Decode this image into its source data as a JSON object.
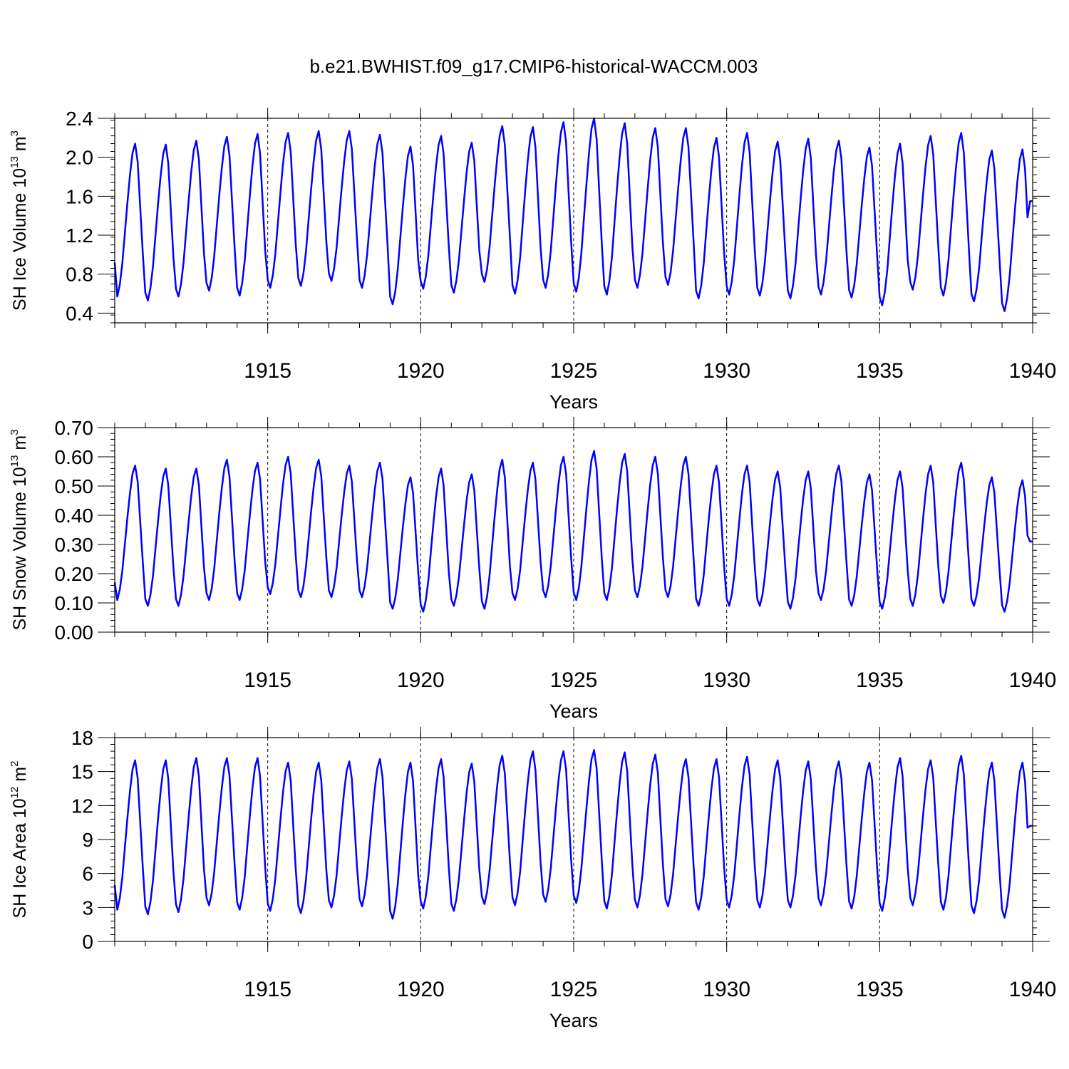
{
  "title": "b.e21.BWHIST.f09_g17.CMIP6-historical-WACCM.003",
  "colors": {
    "line": "#0000ff",
    "axis": "#000000"
  },
  "chart_data": [
    {
      "type": "line",
      "ylabel": {
        "text": "SH Ice Volume 10",
        "exp": "13",
        "unit": " m",
        "unit_exp": "3"
      },
      "xlabel": "Years",
      "xlim": [
        1910.0,
        1940.0
      ],
      "ylim": [
        0.3,
        2.4
      ],
      "yticks": [
        0.4,
        0.8,
        1.2,
        1.6,
        2.0,
        2.4
      ],
      "ytick_labels": [
        "0.4",
        "0.8",
        "1.2",
        "1.6",
        "2.0",
        "2.4"
      ],
      "xticks": [
        1915,
        1920,
        1925,
        1930,
        1935,
        1940
      ],
      "xtick_labels": [
        "1915",
        "1920",
        "1925",
        "1930",
        "1935",
        "1940"
      ],
      "start_value": 0.92,
      "end_value": 1.55,
      "annual_min": [
        0.57,
        0.53,
        0.57,
        0.63,
        0.58,
        0.66,
        0.68,
        0.73,
        0.66,
        0.49,
        0.65,
        0.61,
        0.72,
        0.6,
        0.66,
        0.62,
        0.59,
        0.66,
        0.69,
        0.55,
        0.59,
        0.58,
        0.55,
        0.59,
        0.56,
        0.48,
        0.64,
        0.58,
        0.52,
        0.42
      ],
      "annual_max": [
        2.14,
        2.13,
        2.17,
        2.21,
        2.24,
        2.25,
        2.27,
        2.27,
        2.23,
        2.11,
        2.22,
        2.15,
        2.32,
        2.31,
        2.36,
        2.4,
        2.35,
        2.3,
        2.3,
        2.2,
        2.25,
        2.16,
        2.19,
        2.17,
        2.1,
        2.14,
        2.22,
        2.25,
        2.07,
        2.08
      ],
      "dashed_vlines": [
        1915,
        1920,
        1925,
        1930,
        1935
      ]
    },
    {
      "type": "line",
      "ylabel": {
        "text": "SH Snow Volume 10",
        "exp": "13",
        "unit": " m",
        "unit_exp": "3"
      },
      "xlabel": "Years",
      "xlim": [
        1910.0,
        1940.0
      ],
      "ylim": [
        0.0,
        0.7
      ],
      "yticks": [
        0.0,
        0.1,
        0.2,
        0.3,
        0.4,
        0.5,
        0.6,
        0.7
      ],
      "ytick_labels": [
        "0.00",
        "0.10",
        "0.20",
        "0.30",
        "0.40",
        "0.50",
        "0.60",
        "0.70"
      ],
      "xticks": [
        1915,
        1920,
        1925,
        1930,
        1935,
        1940
      ],
      "xtick_labels": [
        "1915",
        "1920",
        "1925",
        "1930",
        "1935",
        "1940"
      ],
      "start_value": 0.17,
      "end_value": 0.31,
      "annual_min": [
        0.11,
        0.09,
        0.09,
        0.11,
        0.11,
        0.13,
        0.12,
        0.12,
        0.12,
        0.08,
        0.07,
        0.09,
        0.08,
        0.11,
        0.12,
        0.11,
        0.11,
        0.12,
        0.12,
        0.09,
        0.09,
        0.09,
        0.08,
        0.11,
        0.09,
        0.08,
        0.09,
        0.1,
        0.09,
        0.07
      ],
      "annual_max": [
        0.57,
        0.56,
        0.56,
        0.59,
        0.58,
        0.6,
        0.59,
        0.57,
        0.58,
        0.53,
        0.56,
        0.54,
        0.59,
        0.58,
        0.6,
        0.62,
        0.61,
        0.6,
        0.6,
        0.57,
        0.57,
        0.55,
        0.55,
        0.57,
        0.54,
        0.55,
        0.57,
        0.58,
        0.53,
        0.52
      ],
      "dashed_vlines": [
        1915,
        1920,
        1925,
        1930,
        1935
      ]
    },
    {
      "type": "line",
      "ylabel": {
        "text": "SH Ice Area 10",
        "exp": "12",
        "unit": " m",
        "unit_exp": "2"
      },
      "xlabel": "Years",
      "xlim": [
        1910.0,
        1940.0
      ],
      "ylim": [
        0,
        18
      ],
      "yticks": [
        0,
        3,
        6,
        9,
        12,
        15,
        18
      ],
      "ytick_labels": [
        "0",
        "3",
        "6",
        "9",
        "12",
        "15",
        "18"
      ],
      "xticks": [
        1915,
        1920,
        1925,
        1930,
        1935,
        1940
      ],
      "xtick_labels": [
        "1915",
        "1920",
        "1925",
        "1930",
        "1935",
        "1940"
      ],
      "start_value": 5.0,
      "end_value": 10.2,
      "annual_min": [
        2.8,
        2.4,
        2.6,
        3.2,
        2.8,
        2.7,
        2.5,
        3.0,
        3.1,
        2.0,
        2.9,
        2.7,
        3.3,
        3.2,
        3.5,
        3.4,
        2.9,
        3.0,
        3.1,
        2.8,
        3.0,
        3.0,
        3.0,
        3.2,
        2.9,
        2.7,
        3.2,
        2.8,
        2.5,
        2.1
      ],
      "annual_max": [
        16.0,
        16.0,
        16.2,
        16.2,
        16.2,
        15.8,
        15.8,
        15.9,
        16.1,
        15.8,
        16.1,
        15.7,
        16.4,
        16.8,
        16.8,
        16.9,
        16.7,
        16.5,
        16.1,
        16.1,
        16.3,
        16.0,
        15.9,
        15.9,
        15.8,
        16.2,
        16.0,
        16.4,
        15.8,
        15.8
      ],
      "dashed_vlines": [
        1915,
        1920,
        1925,
        1930,
        1935
      ]
    }
  ]
}
